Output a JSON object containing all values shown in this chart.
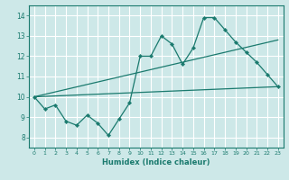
{
  "title": "",
  "xlabel": "Humidex (Indice chaleur)",
  "ylabel": "",
  "background_color": "#cde8e8",
  "line_color": "#1a7a6e",
  "grid_color": "#ffffff",
  "xlim": [
    -0.5,
    23.5
  ],
  "ylim": [
    7.5,
    14.5
  ],
  "xticks": [
    0,
    1,
    2,
    3,
    4,
    5,
    6,
    7,
    8,
    9,
    10,
    11,
    12,
    13,
    14,
    15,
    16,
    17,
    18,
    19,
    20,
    21,
    22,
    23
  ],
  "yticks": [
    8,
    9,
    10,
    11,
    12,
    13,
    14
  ],
  "line1": {
    "x": [
      0,
      1,
      2,
      3,
      4,
      5,
      6,
      7,
      8,
      9,
      10,
      11,
      12,
      13,
      14,
      15,
      16,
      17,
      18,
      19,
      20,
      21,
      22,
      23
    ],
    "y": [
      10.0,
      9.4,
      9.6,
      8.8,
      8.6,
      9.1,
      8.7,
      8.1,
      8.9,
      9.7,
      12.0,
      12.0,
      13.0,
      12.6,
      11.6,
      12.4,
      13.9,
      13.9,
      13.3,
      12.7,
      12.2,
      11.7,
      11.1,
      10.5
    ]
  },
  "line2": {
    "x": [
      0,
      23
    ],
    "y": [
      10.0,
      10.5
    ]
  },
  "line3": {
    "x": [
      0,
      23
    ],
    "y": [
      10.0,
      12.8
    ]
  }
}
